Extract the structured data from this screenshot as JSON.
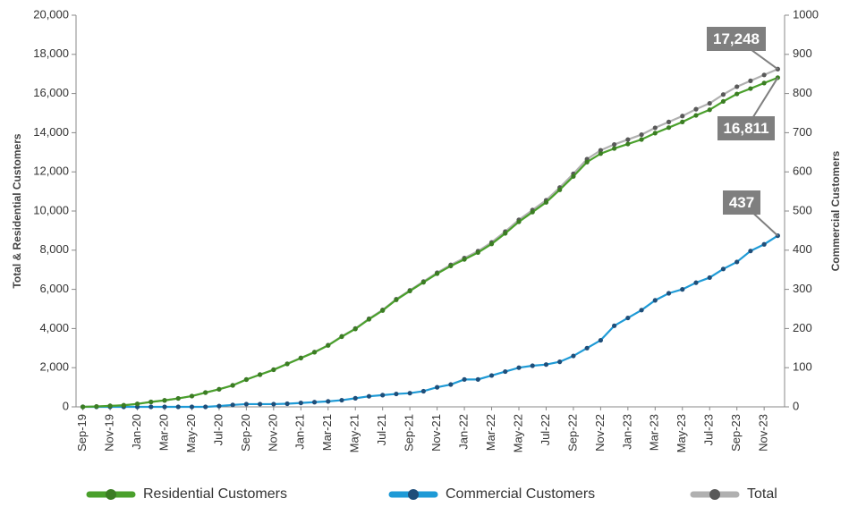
{
  "chart_data": {
    "type": "line",
    "y_label": "Total & Residential Customers",
    "y2_label": "Commercial Customers",
    "categories": [
      "Sep-19",
      null,
      "Nov-19",
      null,
      "Jan-20",
      null,
      "Mar-20",
      null,
      "May-20",
      null,
      "Jul-20",
      null,
      "Sep-20",
      null,
      "Nov-20",
      null,
      "Jan-21",
      null,
      "Mar-21",
      null,
      "May-21",
      null,
      "Jul-21",
      null,
      "Sep-21",
      null,
      "Nov-21",
      null,
      "Jan-22",
      null,
      "Mar-22",
      null,
      "May-22",
      null,
      "Jul-22",
      null,
      "Sep-22",
      null,
      "Nov-22",
      null,
      "Jan-23",
      null,
      "Mar-23",
      null,
      "May-23",
      null,
      "Jul-23",
      null,
      "Sep-23",
      null,
      "Nov-23",
      null
    ],
    "series": [
      {
        "name": "Residential Customers",
        "color": "#4aa02c",
        "marker_color": "#3b7d23",
        "values": [
          0,
          20,
          50,
          80,
          150,
          250,
          330,
          430,
          550,
          730,
          898,
          1095,
          1393,
          1643,
          1893,
          2192,
          2490,
          2788,
          3136,
          3583,
          3978,
          4473,
          4920,
          5467,
          5915,
          6360,
          6800,
          7193,
          7530,
          7880,
          8320,
          8860,
          9450,
          9945,
          10442,
          11085,
          11770,
          12500,
          12930,
          13193,
          13423,
          13653,
          13978,
          14260,
          14550,
          14883,
          15170,
          15598,
          15980,
          16252,
          16535,
          16811
        ],
        "value_labels": [
          null,
          null,
          null,
          null,
          null,
          null,
          null,
          null,
          null,
          null,
          null,
          null,
          null,
          null,
          null,
          null,
          null,
          null,
          null,
          null,
          null,
          null,
          null,
          null,
          null,
          null,
          null,
          null,
          null,
          null,
          null,
          null,
          null,
          null,
          null,
          null,
          null,
          null,
          null,
          null,
          null,
          null,
          null,
          null,
          null,
          null,
          null,
          null,
          null,
          null,
          null,
          "16,811"
        ]
      },
      {
        "name": "Commercial Customers",
        "color": "#1e9ad6",
        "marker_color": "#1f4e79",
        "axis": "y2",
        "values": [
          0,
          0,
          0,
          0,
          0,
          0,
          0,
          0,
          0,
          0,
          2,
          5,
          7,
          7,
          7,
          8,
          10,
          12,
          14,
          17,
          22,
          27,
          30,
          33,
          35,
          40,
          50,
          57,
          70,
          70,
          80,
          90,
          100,
          105,
          108,
          115,
          130,
          150,
          170,
          207,
          227,
          247,
          272,
          290,
          300,
          317,
          330,
          352,
          370,
          398,
          415,
          437
        ]
      },
      {
        "name": "Total",
        "color": "#b0b0b0",
        "marker_color": "#595959",
        "values": [
          0,
          20,
          50,
          80,
          150,
          250,
          330,
          430,
          550,
          730,
          900,
          1100,
          1400,
          1650,
          1900,
          2200,
          2500,
          2800,
          3150,
          3600,
          4000,
          4500,
          4950,
          5500,
          5950,
          6400,
          6850,
          7250,
          7600,
          7950,
          8400,
          8950,
          9550,
          10050,
          10550,
          11200,
          11900,
          12650,
          13100,
          13400,
          13650,
          13900,
          14250,
          14550,
          14850,
          15200,
          15500,
          15950,
          16350,
          16650,
          16950,
          17248
        ],
        "value_labels": [
          null,
          null,
          null,
          null,
          null,
          null,
          null,
          null,
          null,
          null,
          null,
          null,
          null,
          null,
          null,
          null,
          null,
          null,
          null,
          null,
          null,
          null,
          null,
          null,
          null,
          null,
          null,
          null,
          null,
          null,
          null,
          null,
          null,
          null,
          null,
          null,
          null,
          null,
          null,
          null,
          null,
          null,
          null,
          null,
          null,
          null,
          null,
          null,
          null,
          null,
          null,
          "17,248"
        ]
      }
    ],
    "ylim": [
      0,
      20000
    ],
    "yticks": [
      0,
      {
        "value": 2000,
        "label": "2,000"
      },
      {
        "value": 4000,
        "label": "4,000"
      },
      {
        "value": 6000,
        "label": "6,000"
      },
      {
        "value": 8000,
        "label": "8,000"
      },
      {
        "value": 10000,
        "label": "10,000"
      },
      {
        "value": 12000,
        "label": "12,000"
      },
      {
        "value": 14000,
        "label": "14,000"
      },
      {
        "value": 16000,
        "label": "16,000"
      },
      {
        "value": 18000,
        "label": "18,000"
      },
      {
        "value": 20000,
        "label": "20,000"
      }
    ],
    "y2lim": [
      0,
      1000
    ],
    "y2ticks": [
      0,
      100,
      200,
      300,
      400,
      500,
      600,
      700,
      800,
      900,
      1000
    ],
    "commercial_last_label": "437",
    "grid": false,
    "legend": "bottom"
  }
}
